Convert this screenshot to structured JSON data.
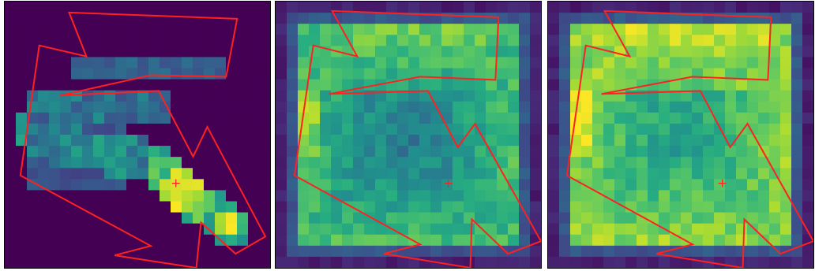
{
  "figure": {
    "panel_count": 3,
    "colormap": "viridis",
    "overlay_color": "#ff2020"
  },
  "panels": [
    {
      "id": "left",
      "pattern": "diagonal-streak"
    },
    {
      "id": "middle",
      "pattern": "square-ring-dim"
    },
    {
      "id": "right",
      "pattern": "square-ring-bright"
    }
  ]
}
